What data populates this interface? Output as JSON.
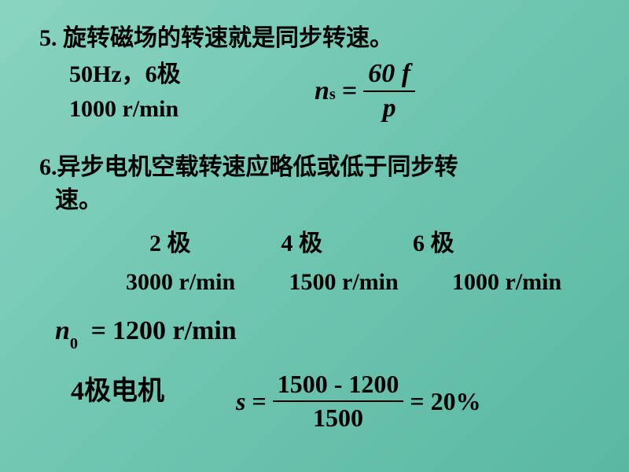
{
  "q5": {
    "num": "5.",
    "title": "旋转磁场的转速就是同步转速。",
    "line2": "50Hz，6极",
    "line3": "1000  r/min",
    "formula": {
      "lhs_var": "n",
      "lhs_sub": "s",
      "eq": "=",
      "num": "60 f",
      "den": "p"
    }
  },
  "q6": {
    "num": "6.",
    "title_l1": "异步电机空载转速应略低或低于同步转",
    "title_l2": "速。",
    "poles": {
      "p1": "2  极",
      "p2": "4  极",
      "p3": "6   极"
    },
    "speeds": {
      "s1": "3000  r/min",
      "s2": "1500  r/min",
      "s3": "1000  r/min"
    },
    "n0": {
      "var": "n",
      "sub": "0",
      "eq": "=",
      "val": "1200",
      "unit": "  r/min"
    },
    "slip": {
      "var": "s",
      "eq1": "=",
      "num": "1500 - 1200",
      "den": "1500",
      "eq2": "=",
      "res": "20%"
    },
    "conclusion_num": "4",
    "conclusion_txt": "极电机"
  }
}
